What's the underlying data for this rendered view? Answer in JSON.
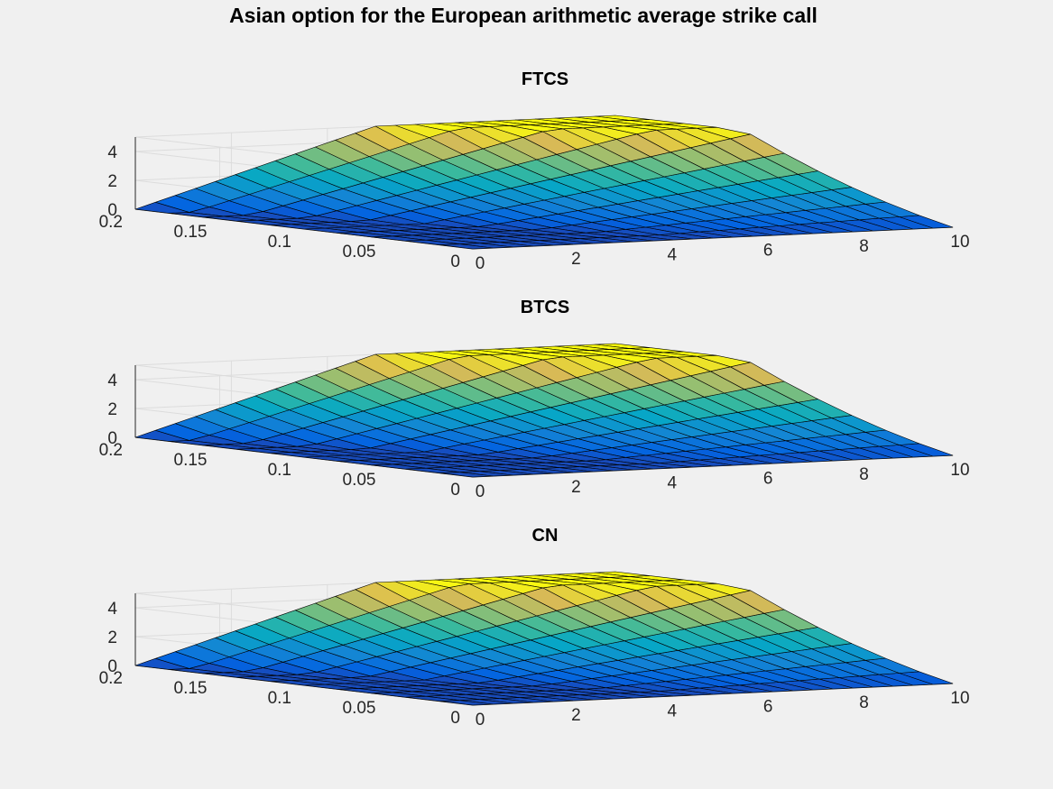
{
  "figure": {
    "title": "Asian option for the European arithmetic average strike call"
  },
  "chart_data": [
    {
      "type": "surface",
      "title": "FTCS",
      "x_ticks": [
        "0",
        "0.05",
        "0.1",
        "0.15",
        "0.2"
      ],
      "y_ticks": [
        "0",
        "2",
        "4",
        "6",
        "8",
        "10"
      ],
      "z_ticks": [
        "0",
        "2",
        "4"
      ],
      "xlim": [
        0,
        0.2
      ],
      "ylim": [
        0,
        10
      ],
      "zlim": [
        0,
        5
      ],
      "z_max": 5,
      "colormap": "parula",
      "grid": true
    },
    {
      "type": "surface",
      "title": "BTCS",
      "x_ticks": [
        "0",
        "0.05",
        "0.1",
        "0.15",
        "0.2"
      ],
      "y_ticks": [
        "0",
        "2",
        "4",
        "6",
        "8",
        "10"
      ],
      "z_ticks": [
        "0",
        "2",
        "4"
      ],
      "xlim": [
        0,
        0.2
      ],
      "ylim": [
        0,
        10
      ],
      "zlim": [
        0,
        5
      ],
      "z_max": 5,
      "colormap": "parula",
      "grid": true
    },
    {
      "type": "surface",
      "title": "CN",
      "x_ticks": [
        "0",
        "0.05",
        "0.1",
        "0.15",
        "0.2"
      ],
      "y_ticks": [
        "0",
        "2",
        "4",
        "6",
        "8",
        "10"
      ],
      "z_ticks": [
        "0",
        "2",
        "4"
      ],
      "xlim": [
        0,
        0.2
      ],
      "ylim": [
        0,
        10
      ],
      "zlim": [
        0,
        5
      ],
      "z_max": 5,
      "colormap": "parula",
      "grid": true
    }
  ]
}
